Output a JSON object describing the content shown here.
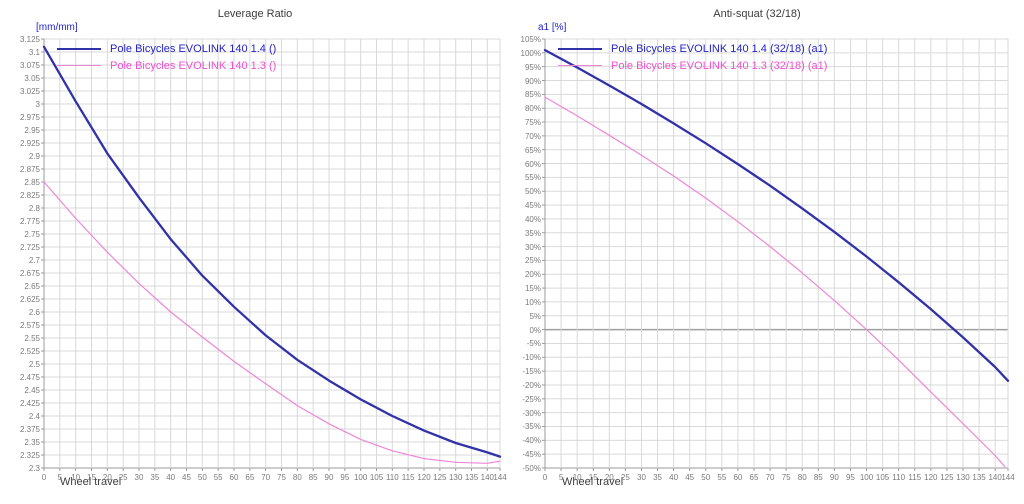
{
  "colors": {
    "grid": "#d9d9d9",
    "axis": "#9b9b9b",
    "zero_line": "#9e9e9e",
    "tick_text": "#7a7a7a",
    "title_text": "#3c3c3c",
    "unit_text": "#2323c8",
    "blue_line": "#3232a8",
    "blue_text": "#2323c8",
    "pink_line": "#ee86d7",
    "pink_text": "#ee50d2"
  },
  "chart_data": [
    {
      "type": "line",
      "title": "Leverage Ratio",
      "ylabel": "[mm/mm]",
      "xlabel": "Wheel travel",
      "grid": true,
      "legend_position": "top-left",
      "xlim": [
        0,
        144
      ],
      "ylim": [
        2.3,
        3.125
      ],
      "zero_line": false,
      "x_ticks": [
        0,
        5,
        10,
        15,
        20,
        25,
        30,
        35,
        40,
        45,
        50,
        55,
        60,
        65,
        70,
        75,
        80,
        85,
        90,
        95,
        100,
        105,
        110,
        115,
        120,
        125,
        130,
        135,
        140,
        144
      ],
      "y_tick_labels": [
        "3.125",
        "3.1",
        "3.075",
        "3.05",
        "3.025",
        "3",
        "2.975",
        "2.95",
        "2.925",
        "2.9",
        "2.875",
        "2.85",
        "2.825",
        "2.8",
        "2.775",
        "2.75",
        "2.725",
        "2.7",
        "2.675",
        "2.65",
        "2.625",
        "2.6",
        "2.575",
        "2.55",
        "2.525",
        "2.5",
        "2.475",
        "2.45",
        "2.425",
        "2.4",
        "2.375",
        "2.35",
        "2.325",
        "2.3"
      ],
      "series": [
        {
          "name": "Pole Bicycles EVOLINK 140 1.4 ()",
          "color": "#3232a8",
          "text_color": "#2323c8",
          "line_width": 2.3,
          "x": [
            0,
            10,
            20,
            30,
            40,
            50,
            60,
            70,
            80,
            90,
            100,
            110,
            120,
            130,
            140,
            144
          ],
          "values": [
            3.11,
            3.005,
            2.905,
            2.82,
            2.74,
            2.67,
            2.61,
            2.555,
            2.508,
            2.468,
            2.432,
            2.4,
            2.372,
            2.348,
            2.33,
            2.322
          ]
        },
        {
          "name": "Pole Bicycles EVOLINK 140 1.3 ()",
          "color": "#ee86d7",
          "text_color": "#ee50d2",
          "line_width": 1.2,
          "x": [
            0,
            10,
            20,
            30,
            40,
            50,
            60,
            70,
            80,
            90,
            100,
            110,
            120,
            130,
            140,
            144
          ],
          "values": [
            2.85,
            2.78,
            2.715,
            2.655,
            2.6,
            2.552,
            2.505,
            2.462,
            2.42,
            2.385,
            2.355,
            2.333,
            2.318,
            2.311,
            2.309,
            2.313
          ]
        }
      ]
    },
    {
      "type": "line",
      "title": "Anti-squat (32/18)",
      "ylabel": "a1 [%]",
      "xlabel": "Wheel travel",
      "grid": true,
      "legend_position": "top-left",
      "xlim": [
        0,
        144
      ],
      "ylim": [
        -50,
        105
      ],
      "zero_line": true,
      "x_ticks": [
        0,
        5,
        10,
        15,
        20,
        25,
        30,
        35,
        40,
        45,
        50,
        55,
        60,
        65,
        70,
        75,
        80,
        85,
        90,
        95,
        100,
        105,
        110,
        115,
        120,
        125,
        130,
        135,
        140,
        144
      ],
      "y_tick_labels": [
        "105%",
        "100%",
        "95%",
        "90%",
        "85%",
        "80%",
        "75%",
        "70%",
        "65%",
        "60%",
        "55%",
        "50%",
        "45%",
        "40%",
        "35%",
        "30%",
        "25%",
        "20%",
        "15%",
        "10%",
        "5%",
        "0%",
        "-5%",
        "-10%",
        "-15%",
        "-20%",
        "-25%",
        "-30%",
        "-35%",
        "-40%",
        "-45%",
        "-50%"
      ],
      "series": [
        {
          "name": "Pole Bicycles EVOLINK 140 1.4 (32/18) (a1)",
          "color": "#3232a8",
          "text_color": "#2323c8",
          "line_width": 2.3,
          "x": [
            0,
            10,
            20,
            30,
            40,
            50,
            60,
            70,
            80,
            90,
            100,
            110,
            120,
            130,
            140,
            144
          ],
          "values": [
            101,
            94.7,
            88.2,
            81.5,
            74.5,
            67.3,
            59.8,
            52,
            43.8,
            35.3,
            26.4,
            17.1,
            7.4,
            -2.8,
            -13.5,
            -18.5
          ]
        },
        {
          "name": "Pole Bicycles EVOLINK 140 1.3 (32/18) (a1)",
          "color": "#ee86d7",
          "text_color": "#ee50d2",
          "line_width": 1.2,
          "x": [
            0,
            10,
            20,
            30,
            40,
            50,
            60,
            70,
            80,
            90,
            100,
            110,
            120,
            130,
            140,
            143
          ],
          "values": [
            84,
            77.2,
            70.2,
            63,
            55.5,
            47.5,
            39,
            30,
            20.5,
            10.5,
            0,
            -11,
            -22.5,
            -34,
            -45.5,
            -49.5
          ]
        }
      ]
    }
  ]
}
